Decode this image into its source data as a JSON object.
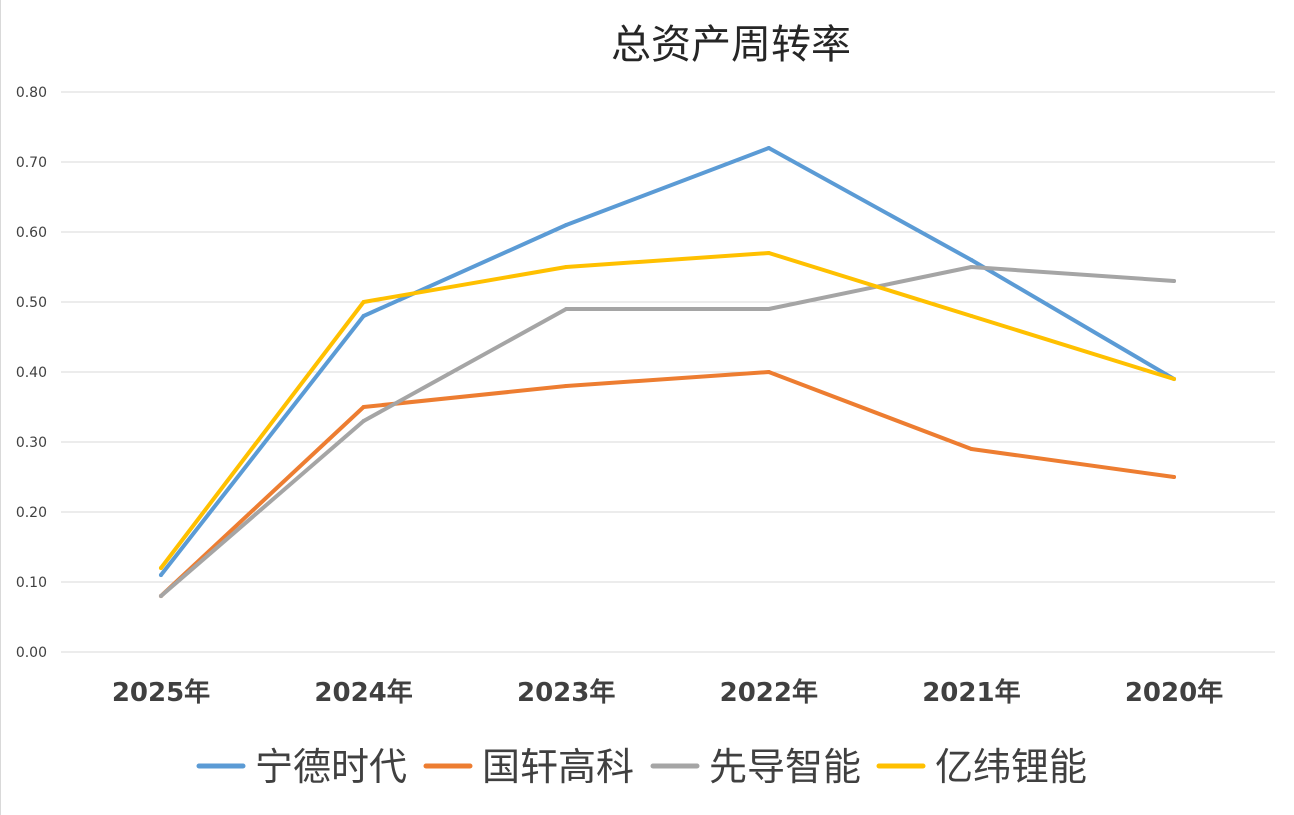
{
  "chart_data": {
    "type": "line",
    "title": "总资产周转率",
    "xlabel": "",
    "ylabel": "",
    "categories": [
      "2025年",
      "2024年",
      "2023年",
      "2022年",
      "2021年",
      "2020年"
    ],
    "ylim": [
      0,
      0.8
    ],
    "yticks": [
      "0.00",
      "0.10",
      "0.20",
      "0.30",
      "0.40",
      "0.50",
      "0.60",
      "0.70",
      "0.80"
    ],
    "grid": true,
    "legend_position": "bottom",
    "series": [
      {
        "name": "宁德时代",
        "color": "#5b9bd5",
        "values": [
          0.11,
          0.48,
          0.61,
          0.72,
          0.56,
          0.39
        ]
      },
      {
        "name": "国轩高科",
        "color": "#ed7d31",
        "values": [
          0.08,
          0.35,
          0.38,
          0.4,
          0.29,
          0.25
        ]
      },
      {
        "name": "先导智能",
        "color": "#a5a5a5",
        "values": [
          0.08,
          0.33,
          0.49,
          0.49,
          0.55,
          0.53
        ]
      },
      {
        "name": "亿纬锂能",
        "color": "#ffc000",
        "values": [
          0.12,
          0.5,
          0.55,
          0.57,
          0.48,
          0.39
        ]
      }
    ]
  }
}
